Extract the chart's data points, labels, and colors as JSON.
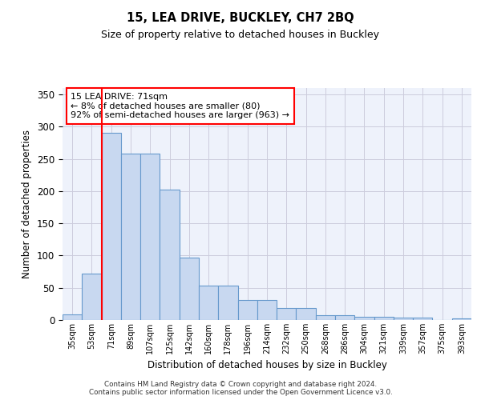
{
  "title1": "15, LEA DRIVE, BUCKLEY, CH7 2BQ",
  "title2": "Size of property relative to detached houses in Buckley",
  "xlabel": "Distribution of detached houses by size in Buckley",
  "ylabel": "Number of detached properties",
  "categories": [
    "35sqm",
    "53sqm",
    "71sqm",
    "89sqm",
    "107sqm",
    "125sqm",
    "142sqm",
    "160sqm",
    "178sqm",
    "196sqm",
    "214sqm",
    "232sqm",
    "250sqm",
    "268sqm",
    "286sqm",
    "304sqm",
    "321sqm",
    "339sqm",
    "357sqm",
    "375sqm",
    "393sqm"
  ],
  "values": [
    9,
    72,
    290,
    258,
    258,
    202,
    97,
    54,
    54,
    31,
    31,
    19,
    19,
    7,
    7,
    5,
    5,
    4,
    4,
    0,
    3
  ],
  "bar_color": "#c8d8f0",
  "bar_edge_color": "#6699cc",
  "red_line_index": 2,
  "annotation_text": "15 LEA DRIVE: 71sqm\n← 8% of detached houses are smaller (80)\n92% of semi-detached houses are larger (963) →",
  "annotation_box_color": "white",
  "annotation_box_edge_color": "red",
  "red_line_color": "red",
  "ylim": [
    0,
    360
  ],
  "yticks": [
    0,
    50,
    100,
    150,
    200,
    250,
    300,
    350
  ],
  "grid_color": "#ccccdd",
  "bg_color": "#eef2fb",
  "footer1": "Contains HM Land Registry data © Crown copyright and database right 2024.",
  "footer2": "Contains public sector information licensed under the Open Government Licence v3.0."
}
